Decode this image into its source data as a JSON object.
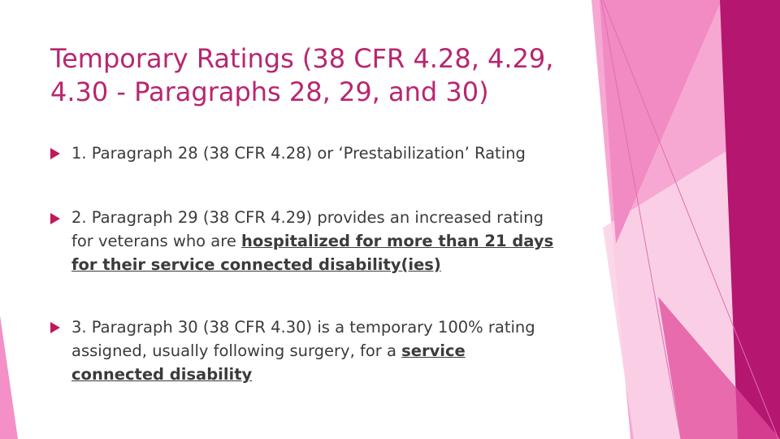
{
  "slide": {
    "title_lines": [
      "Temporary Ratings (38 CFR 4.28, 4.29,",
      "4.30 - Paragraphs 28, 29, and 30)"
    ],
    "bullets": [
      {
        "line1": "1. Paragraph 28 (38 CFR 4.28) or ‘Prestabilization’ Rating"
      },
      {
        "line1": "2. Paragraph 29 (38 CFR 4.29) provides an increased rating",
        "line2_plain": "for veterans who are ",
        "line2_emphasis": "hospitalized for more than 21 days",
        "line3_emphasis": "for their service connected disability(ies)"
      },
      {
        "line1": "3. Paragraph 30 (38 CFR 4.30) is a temporary 100% rating",
        "line2_plain": "assigned, usually following surgery, for a ",
        "line2_emphasis": "service",
        "line3_emphasis": "connected disability"
      }
    ]
  },
  "colors": {
    "title": "#b8266f",
    "body_text": "#3b3b3b",
    "bullet_marker": "#c2185b",
    "accent_dark": "#b5166f",
    "accent_mid": "#e0499a",
    "accent_light": "#f48fc8"
  }
}
